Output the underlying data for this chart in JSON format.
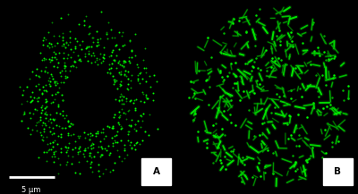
{
  "fig_width": 4.0,
  "fig_height": 2.17,
  "dpi": 100,
  "bg_color": "#000000",
  "label_A": "A",
  "label_B": "B",
  "scalebar_text": "5 μm",
  "scalebar_color": "#ffffff",
  "seed_A": 7,
  "seed_B": 13,
  "n_dots_A": 600,
  "n_dots_B": 500,
  "dot_size_A": 0.8,
  "dot_size_B": 1.4
}
